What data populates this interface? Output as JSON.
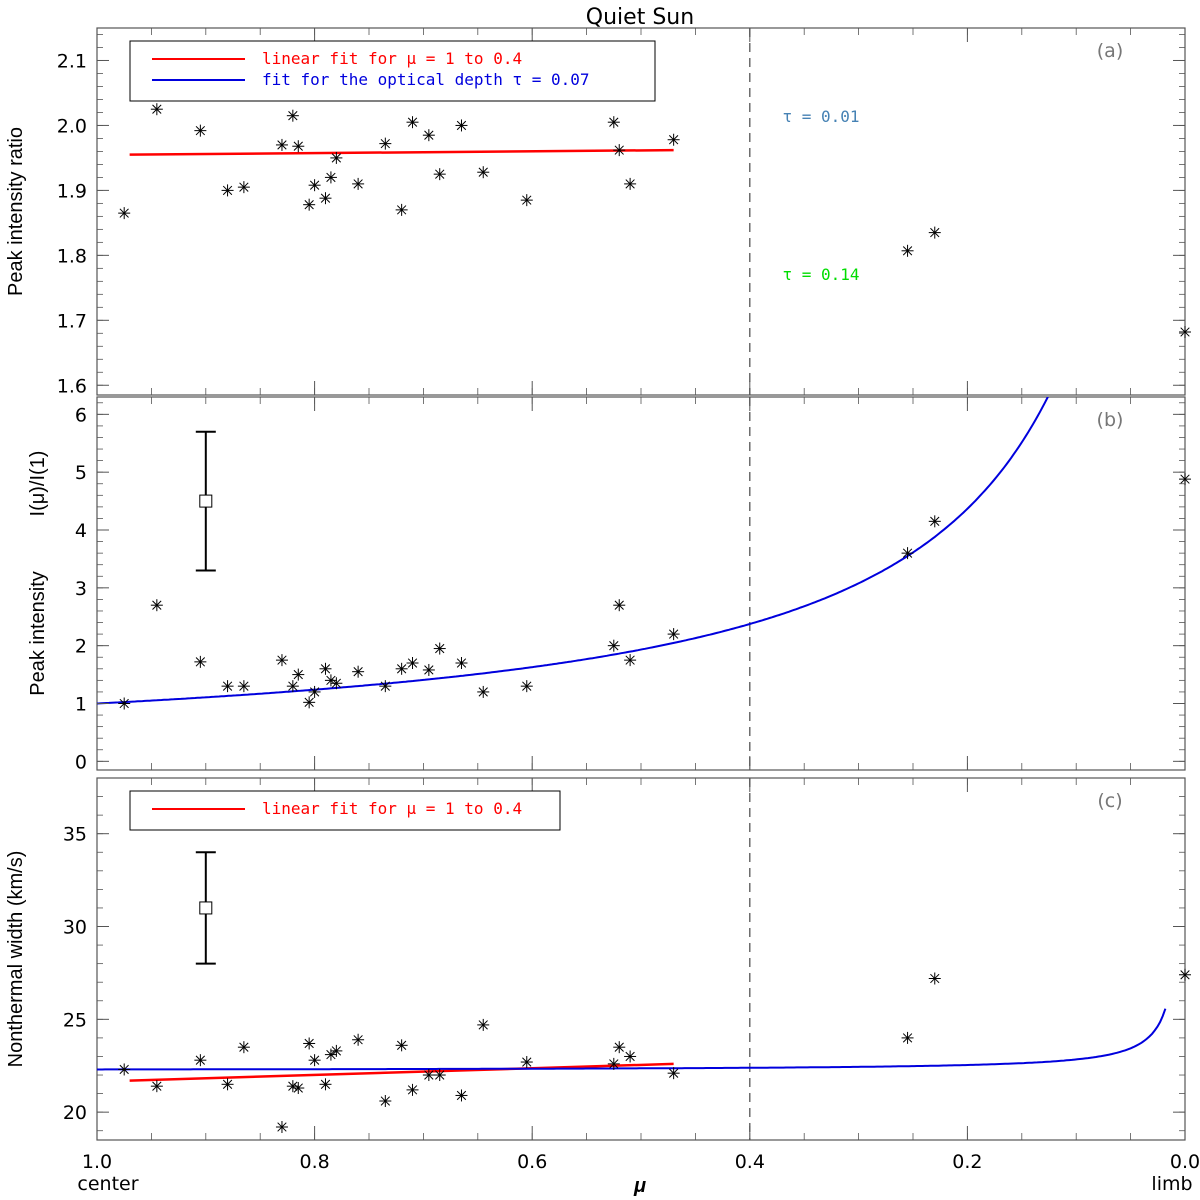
{
  "chart_data": {
    "type": "scatter",
    "title": "Quiet Sun",
    "xlabel": "μ",
    "x_edge_labels": {
      "left": "center",
      "right": "limb"
    },
    "xlim": [
      1.0,
      0.0
    ],
    "x_ticks": [
      "1.0",
      "0.8",
      "0.6",
      "0.4",
      "0.2",
      "0.0"
    ],
    "x_tick_values": [
      1.0,
      0.8,
      0.6,
      0.4,
      0.2,
      0.0
    ],
    "vertical_reference_x": 0.4,
    "points_x": [
      0.975,
      0.945,
      0.905,
      0.88,
      0.865,
      0.83,
      0.82,
      0.815,
      0.805,
      0.8,
      0.79,
      0.785,
      0.78,
      0.76,
      0.735,
      0.72,
      0.71,
      0.695,
      0.685,
      0.665,
      0.645,
      0.605,
      0.525,
      0.52,
      0.51,
      0.47,
      0.255,
      0.23,
      0.0
    ],
    "panels": [
      {
        "letter": "(a)",
        "ylabel": "Peak intensity ratio",
        "ylim": [
          1.585,
          2.15
        ],
        "y_ticks": [
          "1.6",
          "1.7",
          "1.8",
          "1.9",
          "2.0",
          "2.1"
        ],
        "y_tick_values": [
          1.6,
          1.7,
          1.8,
          1.9,
          2.0,
          2.1
        ],
        "points_y": [
          1.865,
          2.025,
          1.992,
          1.9,
          1.905,
          1.97,
          2.015,
          1.968,
          1.878,
          1.908,
          1.888,
          1.92,
          1.95,
          1.91,
          1.972,
          1.87,
          2.005,
          1.985,
          1.925,
          2.0,
          1.928,
          1.885,
          2.005,
          1.962,
          1.91,
          1.978,
          1.807,
          1.835,
          1.682
        ],
        "legend": [
          {
            "text": "linear fit for μ = 1 to 0.4",
            "color": "#ff0000"
          },
          {
            "text": "fit for the optical depth τ = 0.07",
            "color": "#0000dd"
          }
        ],
        "curves": [
          {
            "kind": "linear-fit",
            "color": "#ff0000",
            "x": [
              0.97,
              0.47
            ],
            "y": [
              1.955,
              1.962
            ]
          },
          {
            "kind": "tau-fit",
            "tau": 0.07,
            "color": "#0000dd",
            "x_range": [
              1.0,
              0.07
            ]
          },
          {
            "kind": "tau-model",
            "tau": 0.01,
            "color": "#4682b4",
            "dashed": true,
            "x_range": [
              1.0,
              0.03
            ],
            "label": "τ = 0.01",
            "label_x": 0.37,
            "label_y": 2.005
          },
          {
            "kind": "tau-model",
            "tau": 0.14,
            "color": "#00dd00",
            "dashed": true,
            "x_range": [
              1.0,
              0.14
            ],
            "label": "τ = 0.14",
            "label_x": 0.37,
            "label_y": 1.762
          }
        ]
      },
      {
        "letter": "(b)",
        "ylabel_lines": [
          "Peak intensity",
          "I(μ)/I(1)"
        ],
        "ylim": [
          -0.15,
          6.3
        ],
        "y_ticks": [
          "0",
          "1",
          "2",
          "3",
          "4",
          "5",
          "6"
        ],
        "y_tick_values": [
          0,
          1,
          2,
          3,
          4,
          5,
          6
        ],
        "points_y": [
          1.0,
          2.7,
          1.72,
          1.3,
          1.3,
          1.75,
          1.3,
          1.5,
          1.02,
          1.2,
          1.6,
          1.4,
          1.35,
          1.55,
          1.3,
          1.6,
          1.7,
          1.58,
          1.95,
          1.7,
          1.2,
          1.3,
          2.0,
          2.7,
          1.75,
          2.2,
          3.6,
          4.15,
          4.88
        ],
        "error_bar": {
          "x": 0.9,
          "y": 4.5,
          "low": 3.3,
          "high": 5.7
        },
        "curves": [
          {
            "kind": "intensity-fit",
            "color": "#0000dd",
            "x_range": [
              1.0,
              0.12
            ]
          }
        ]
      },
      {
        "letter": "(c)",
        "ylabel": "Nonthermal width (km/s)",
        "ylim": [
          18.5,
          38
        ],
        "y_ticks": [
          "20",
          "25",
          "30",
          "35"
        ],
        "y_tick_values": [
          20,
          25,
          30,
          35
        ],
        "points_y": [
          22.3,
          21.4,
          22.8,
          21.5,
          23.5,
          19.2,
          21.4,
          21.3,
          23.7,
          22.8,
          21.5,
          23.1,
          23.3,
          23.9,
          20.6,
          23.6,
          21.2,
          22.0,
          22.0,
          20.9,
          24.7,
          22.7,
          22.6,
          23.5,
          23.0,
          22.1,
          24.0,
          27.2,
          27.4
        ],
        "legend": [
          {
            "text": "linear fit for μ = 1 to 0.4",
            "color": "#ff0000"
          }
        ],
        "error_bar": {
          "x": 0.9,
          "y": 31.0,
          "low": 28.0,
          "high": 34.0
        },
        "curves": [
          {
            "kind": "linear-fit",
            "color": "#ff0000",
            "x": [
              0.97,
              0.47
            ],
            "y": [
              21.7,
              22.6
            ]
          },
          {
            "kind": "width-fit",
            "color": "#0000dd",
            "x_range": [
              1.0,
              0.018
            ]
          }
        ]
      }
    ],
    "grid": false
  }
}
